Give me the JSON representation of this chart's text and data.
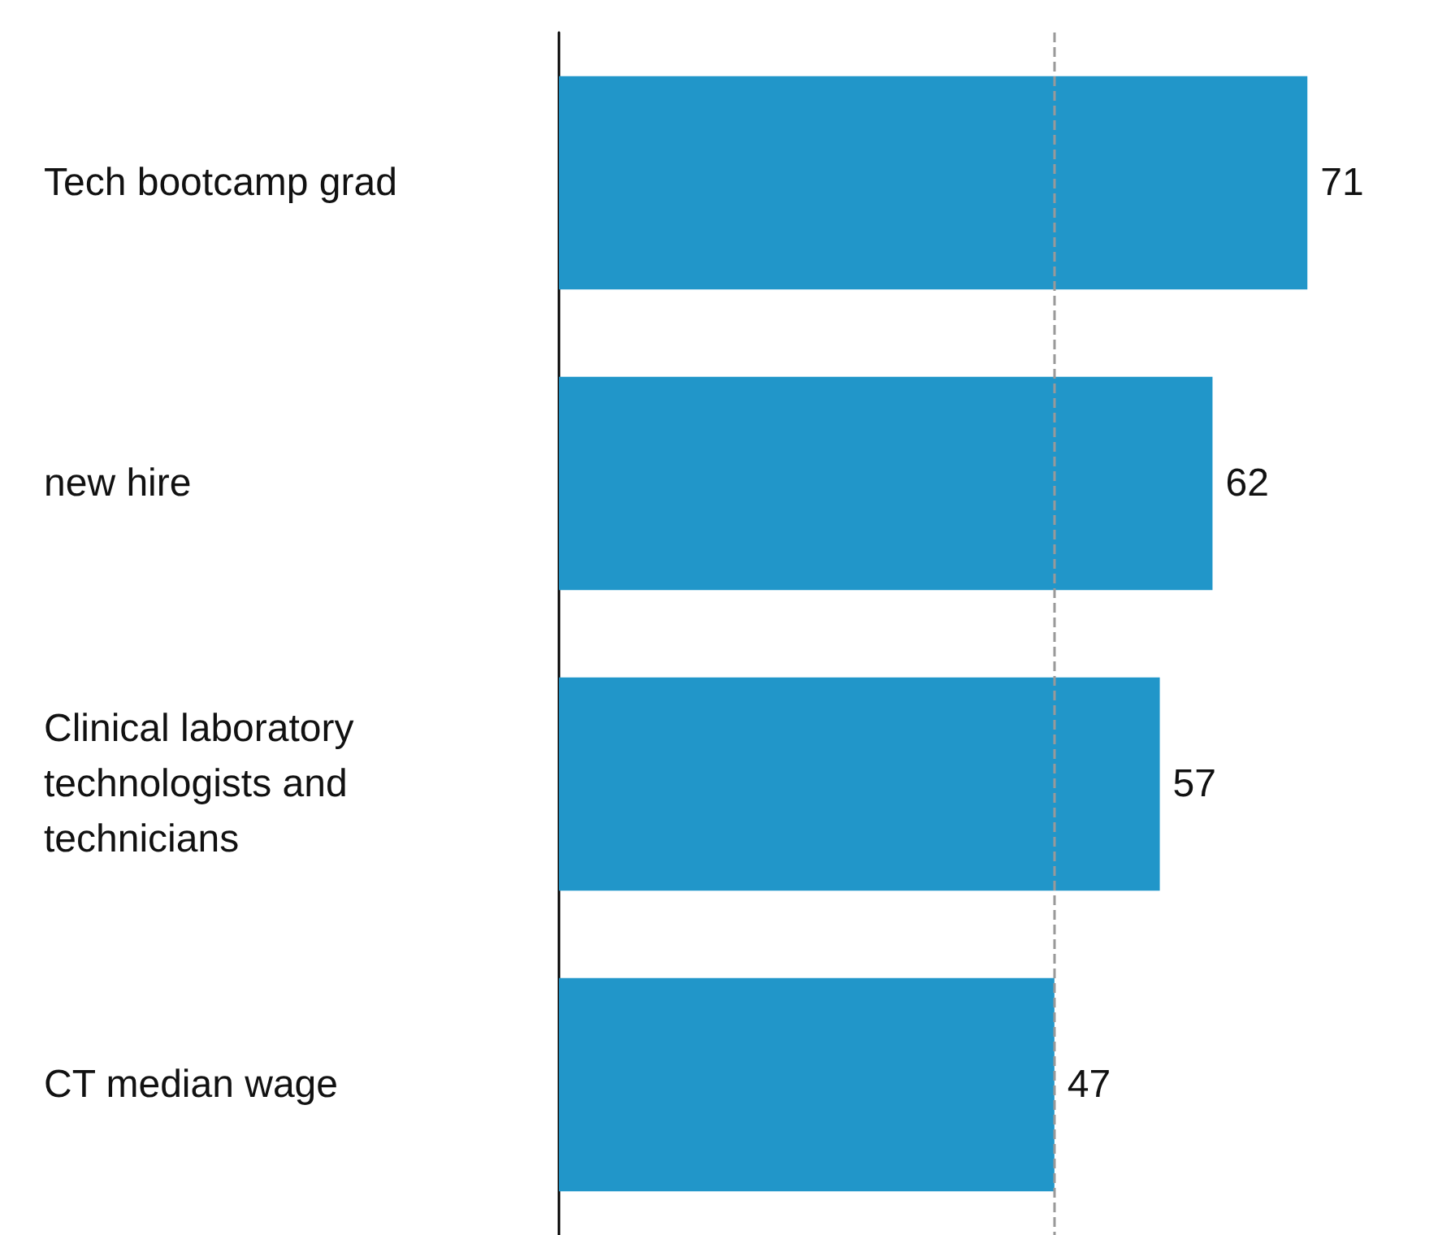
{
  "chart_data": {
    "type": "bar",
    "orientation": "horizontal",
    "categories": [
      "Tech bootcamp grad",
      "new hire",
      "Clinical laboratory technologists and technicians",
      "CT median wage"
    ],
    "values": [
      71,
      62,
      57,
      47
    ],
    "color": "#2196c9",
    "data_labels": true,
    "tick_labels": "y",
    "grid": false,
    "ref_lines": [
      {
        "axis": "x",
        "value": 47,
        "color": "#999999",
        "line_style": "dashed"
      }
    ]
  }
}
